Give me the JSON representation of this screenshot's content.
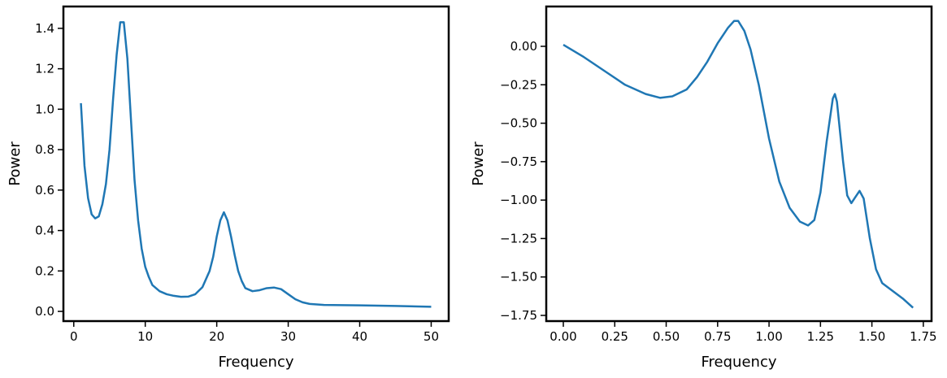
{
  "chart_data": [
    {
      "type": "line",
      "xlabel": "Frequency",
      "ylabel": "Power",
      "color": "#1f77b4",
      "x": [
        1,
        1.5,
        2,
        2.5,
        3,
        3.5,
        4,
        4.5,
        5,
        5.5,
        6,
        6.5,
        7,
        7.5,
        8,
        8.5,
        9,
        9.5,
        10,
        10.5,
        11,
        12,
        13,
        14,
        15,
        16,
        17,
        18,
        19,
        19.5,
        20,
        20.5,
        21,
        21.5,
        22,
        22.5,
        23,
        23.5,
        24,
        25,
        26,
        27,
        28,
        29,
        30,
        31,
        32,
        33,
        35,
        40,
        45,
        50
      ],
      "values": [
        1.03,
        0.72,
        0.56,
        0.48,
        0.46,
        0.47,
        0.53,
        0.63,
        0.8,
        1.05,
        1.27,
        1.43,
        1.43,
        1.25,
        0.95,
        0.65,
        0.45,
        0.31,
        0.22,
        0.17,
        0.13,
        0.1,
        0.085,
        0.077,
        0.072,
        0.073,
        0.085,
        0.12,
        0.2,
        0.27,
        0.37,
        0.45,
        0.49,
        0.45,
        0.37,
        0.28,
        0.2,
        0.15,
        0.115,
        0.1,
        0.105,
        0.115,
        0.118,
        0.11,
        0.085,
        0.06,
        0.045,
        0.037,
        0.032,
        0.03,
        0.027,
        0.023
      ],
      "xlim": [
        -1.45,
        52.45
      ],
      "ylim": [
        -0.048,
        1.508
      ],
      "xticks": [
        0,
        10,
        20,
        30,
        40,
        50
      ],
      "yticks": [
        {
          "value": 0,
          "label": "0.0"
        },
        {
          "value": 0.2,
          "label": "0.2"
        },
        {
          "value": 0.4,
          "label": "0.4"
        },
        {
          "value": 0.6,
          "label": "0.6"
        },
        {
          "value": 0.8,
          "label": "0.8"
        },
        {
          "value": 1.0,
          "label": "1.0"
        },
        {
          "value": 1.2,
          "label": "1.2"
        },
        {
          "value": 1.4,
          "label": "1.4"
        }
      ]
    },
    {
      "type": "line",
      "xlabel": "Frequency",
      "ylabel": "Power",
      "color": "#1f77b4",
      "x": [
        0,
        0.1,
        0.2,
        0.3,
        0.4,
        0.47,
        0.53,
        0.6,
        0.65,
        0.7,
        0.75,
        0.8,
        0.83,
        0.85,
        0.88,
        0.91,
        0.95,
        1.0,
        1.05,
        1.1,
        1.15,
        1.19,
        1.22,
        1.25,
        1.28,
        1.31,
        1.32,
        1.33,
        1.36,
        1.38,
        1.4,
        1.42,
        1.44,
        1.46,
        1.49,
        1.52,
        1.55,
        1.6,
        1.65,
        1.7
      ],
      "values": [
        0.01,
        -0.07,
        -0.16,
        -0.25,
        -0.31,
        -0.335,
        -0.325,
        -0.28,
        -0.2,
        -0.1,
        0.02,
        0.12,
        0.165,
        0.165,
        0.1,
        -0.02,
        -0.25,
        -0.6,
        -0.88,
        -1.05,
        -1.14,
        -1.165,
        -1.13,
        -0.95,
        -0.62,
        -0.34,
        -0.31,
        -0.36,
        -0.75,
        -0.97,
        -1.02,
        -0.98,
        -0.94,
        -0.99,
        -1.25,
        -1.45,
        -1.54,
        -1.59,
        -1.64,
        -1.7
      ],
      "xlim": [
        -0.083,
        1.79
      ],
      "ylim": [
        -1.787,
        0.259
      ],
      "xticks": [
        {
          "value": 0,
          "label": "0.00"
        },
        {
          "value": 0.25,
          "label": "0.25"
        },
        {
          "value": 0.5,
          "label": "0.50"
        },
        {
          "value": 0.75,
          "label": "0.75"
        },
        {
          "value": 1.0,
          "label": "1.00"
        },
        {
          "value": 1.25,
          "label": "1.25"
        },
        {
          "value": 1.5,
          "label": "1.50"
        },
        {
          "value": 1.75,
          "label": "1.75"
        }
      ],
      "yticks": [
        {
          "value": 0,
          "label": "0.00"
        },
        {
          "value": -0.25,
          "label": "−0.25"
        },
        {
          "value": -0.5,
          "label": "−0.50"
        },
        {
          "value": -0.75,
          "label": "−0.75"
        },
        {
          "value": -1.0,
          "label": "−1.00"
        },
        {
          "value": -1.25,
          "label": "−1.25"
        },
        {
          "value": -1.5,
          "label": "−1.50"
        },
        {
          "value": -1.75,
          "label": "−1.75"
        }
      ]
    }
  ]
}
